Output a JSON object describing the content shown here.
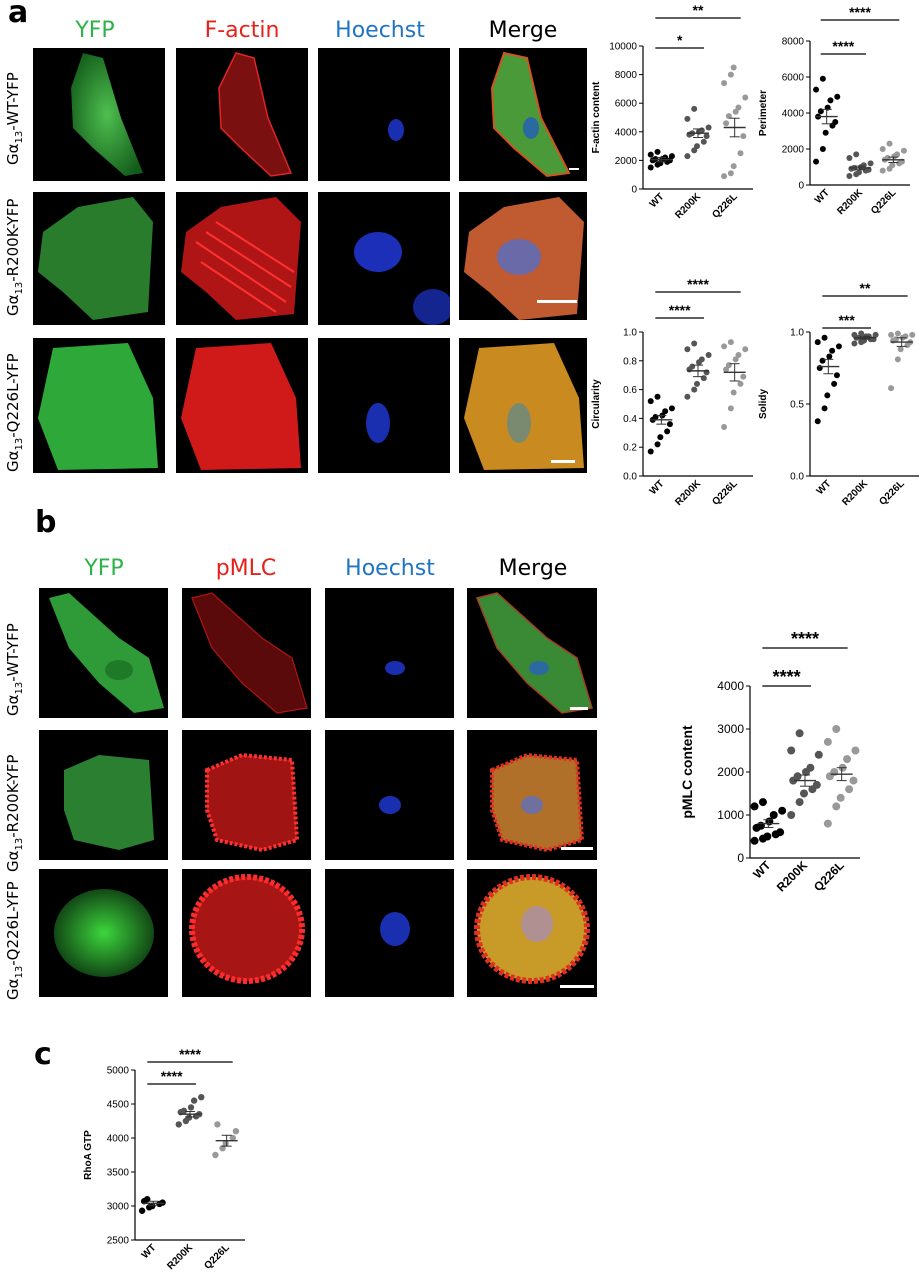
{
  "panels": {
    "a": {
      "letter": "a",
      "columns": [
        "YFP",
        "F-actin",
        "Hoechst",
        "Merge"
      ],
      "rows": [
        {
          "prefix": "Gα",
          "sub": "13",
          "suffix": "-WT-YFP"
        },
        {
          "prefix": "Gα",
          "sub": "13",
          "suffix": "-R200K-YFP"
        },
        {
          "prefix": "Gα",
          "sub": "13",
          "suffix": "-Q226L-YFP"
        }
      ]
    },
    "b": {
      "letter": "b",
      "columns": [
        "YFP",
        "pMLC",
        "Hoechst",
        "Merge"
      ],
      "rows": [
        {
          "prefix": "Gα",
          "sub": "13",
          "suffix": "-WT-YFP"
        },
        {
          "prefix": "Gα",
          "sub": "13",
          "suffix": "-R200K-YFP"
        },
        {
          "prefix": "Gα",
          "sub": "13",
          "suffix": "-Q226L-YFP"
        }
      ]
    },
    "c": {
      "letter": "c"
    }
  },
  "colors": {
    "yfp_label": "#2db34a",
    "red_label": "#e8201a",
    "hoechst_label": "#1f74c4",
    "merge_label": "#000000",
    "wt": "#000000",
    "r200k": "#555555",
    "q226l": "#999999"
  },
  "chart_data": [
    {
      "id": "factin",
      "type": "scatter",
      "ylabel": "F-actin content",
      "categories": [
        "WT",
        "R200K",
        "Q226L"
      ],
      "ylim": [
        0,
        10000
      ],
      "yticks": [
        "0",
        "2000",
        "4000",
        "6000",
        "8000",
        "10000"
      ],
      "means": [
        2050,
        3900,
        4300
      ],
      "sem": [
        150,
        300,
        650
      ],
      "points": [
        [
          1500,
          1700,
          1800,
          1900,
          2000,
          2000,
          2100,
          2100,
          2200,
          2300,
          2400,
          2600
        ],
        [
          2300,
          2700,
          3000,
          3300,
          3700,
          3800,
          3900,
          4000,
          4100,
          4300,
          4900,
          5600
        ],
        [
          900,
          1100,
          1600,
          2500,
          3700,
          4600,
          5100,
          5400,
          5700,
          6400,
          7400,
          8000,
          8500
        ]
      ],
      "significance": [
        {
          "from": 0,
          "to": 1,
          "label": "*"
        },
        {
          "from": 0,
          "to": 2,
          "label": "**"
        }
      ]
    },
    {
      "id": "perimeter",
      "type": "scatter",
      "ylabel": "Perimeter",
      "categories": [
        "WT",
        "R200K",
        "Q226L"
      ],
      "ylim": [
        0,
        8000
      ],
      "yticks": [
        "0",
        "2000",
        "4000",
        "6000",
        "8000"
      ],
      "means": [
        3800,
        950,
        1400
      ],
      "sem": [
        400,
        100,
        150
      ],
      "points": [
        [
          1300,
          2000,
          2900,
          3300,
          3500,
          3800,
          4100,
          4300,
          4700,
          4900,
          5300,
          5900
        ],
        [
          500,
          600,
          700,
          800,
          850,
          900,
          950,
          1000,
          1100,
          1200,
          1500,
          1700
        ],
        [
          800,
          900,
          1100,
          1200,
          1300,
          1400,
          1500,
          1600,
          1700,
          1900,
          2000,
          2300
        ]
      ],
      "significance": [
        {
          "from": 0,
          "to": 1,
          "label": "****"
        },
        {
          "from": 0,
          "to": 2,
          "label": "****"
        }
      ]
    },
    {
      "id": "circularity",
      "type": "scatter",
      "ylabel": "Circularity",
      "categories": [
        "WT",
        "R200K",
        "Q226L"
      ],
      "ylim": [
        0,
        1.0
      ],
      "yticks": [
        "0.0",
        "0.2",
        "0.4",
        "0.6",
        "0.8",
        "1.0"
      ],
      "means": [
        0.39,
        0.73,
        0.72
      ],
      "sem": [
        0.03,
        0.04,
        0.06
      ],
      "points": [
        [
          0.17,
          0.22,
          0.27,
          0.31,
          0.36,
          0.39,
          0.41,
          0.42,
          0.45,
          0.47,
          0.52,
          0.55
        ],
        [
          0.55,
          0.6,
          0.64,
          0.68,
          0.72,
          0.74,
          0.76,
          0.79,
          0.81,
          0.84,
          0.88,
          0.92
        ],
        [
          0.34,
          0.47,
          0.58,
          0.64,
          0.69,
          0.74,
          0.77,
          0.81,
          0.84,
          0.88,
          0.9,
          0.93
        ]
      ],
      "significance": [
        {
          "from": 0,
          "to": 1,
          "label": "****"
        },
        {
          "from": 0,
          "to": 2,
          "label": "****"
        }
      ]
    },
    {
      "id": "solidity",
      "type": "scatter",
      "ylabel": "Solidy",
      "categories": [
        "WT",
        "R200K",
        "Q226L"
      ],
      "ylim": [
        0,
        1.0
      ],
      "yticks": [
        "0.0",
        "0.5",
        "1.0"
      ],
      "means": [
        0.76,
        0.96,
        0.93
      ],
      "sem": [
        0.05,
        0.01,
        0.03
      ],
      "points": [
        [
          0.38,
          0.47,
          0.56,
          0.64,
          0.7,
          0.75,
          0.8,
          0.83,
          0.87,
          0.9,
          0.93,
          0.96
        ],
        [
          0.92,
          0.93,
          0.94,
          0.95,
          0.95,
          0.96,
          0.96,
          0.97,
          0.97,
          0.98,
          0.98,
          0.99
        ],
        [
          0.61,
          0.81,
          0.88,
          0.91,
          0.93,
          0.94,
          0.95,
          0.96,
          0.97,
          0.98,
          0.98,
          0.99
        ]
      ],
      "significance": [
        {
          "from": 0,
          "to": 1,
          "label": "***"
        },
        {
          "from": 0,
          "to": 2,
          "label": "**"
        }
      ]
    },
    {
      "id": "pmlc",
      "type": "scatter",
      "ylabel": "pMLC content",
      "categories": [
        "WT",
        "R200K",
        "Q226L"
      ],
      "ylim": [
        0,
        4000
      ],
      "yticks": [
        "0",
        "1000",
        "2000",
        "3000",
        "4000"
      ],
      "means": [
        800,
        1800,
        1950
      ],
      "sem": [
        90,
        130,
        150
      ],
      "points": [
        [
          400,
          450,
          500,
          550,
          600,
          700,
          750,
          850,
          1000,
          1100,
          1200,
          1300
        ],
        [
          1000,
          1300,
          1500,
          1600,
          1700,
          1800,
          1900,
          2000,
          2100,
          2400,
          2500,
          2900
        ],
        [
          800,
          1200,
          1400,
          1600,
          1800,
          1900,
          2000,
          2100,
          2300,
          2500,
          2700,
          3000
        ]
      ],
      "significance": [
        {
          "from": 0,
          "to": 1,
          "label": "****"
        },
        {
          "from": 0,
          "to": 2,
          "label": "****"
        }
      ]
    },
    {
      "id": "rhoa",
      "type": "scatter",
      "ylabel": "RhoA GTP",
      "categories": [
        "WT",
        "R200K",
        "Q226L"
      ],
      "ylim": [
        2500,
        5000
      ],
      "yticks": [
        "2500",
        "3000",
        "3500",
        "4000",
        "4500",
        "5000"
      ],
      "means": [
        3040,
        4350,
        3960
      ],
      "sem": [
        30,
        40,
        80
      ],
      "points": [
        [
          2930,
          2980,
          3000,
          3030,
          3050,
          3070,
          3100
        ],
        [
          4200,
          4250,
          4300,
          4320,
          4350,
          4380,
          4400,
          4450,
          4550,
          4600
        ],
        [
          3750,
          3850,
          3920,
          4000,
          4100,
          4200
        ]
      ],
      "significance": [
        {
          "from": 0,
          "to": 1,
          "label": "****"
        },
        {
          "from": 0,
          "to": 2,
          "label": "****"
        }
      ]
    }
  ]
}
